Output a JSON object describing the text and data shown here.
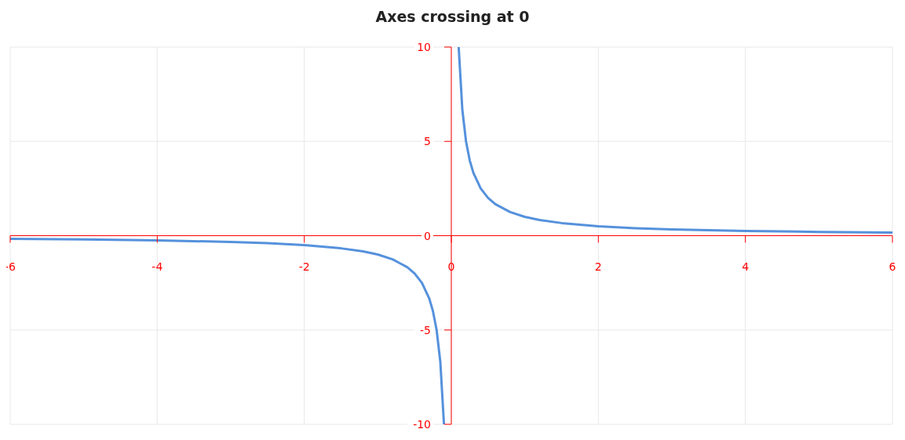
{
  "chart_data": {
    "type": "line",
    "title": "Axes crossing at 0",
    "x": [
      -6,
      -5,
      -4,
      -3,
      -2.5,
      -2,
      -1.5,
      -1.2,
      -1,
      -0.8,
      -0.6,
      -0.5,
      -0.4,
      -0.3,
      -0.25,
      -0.2,
      -0.15,
      -0.1,
      0,
      0.1,
      0.15,
      0.2,
      0.25,
      0.3,
      0.4,
      0.5,
      0.6,
      0.8,
      1,
      1.2,
      1.5,
      2,
      2.5,
      3,
      4,
      5,
      6
    ],
    "series": [
      {
        "color": "#5591dc",
        "values": [
          -0.17,
          -0.2,
          -0.25,
          -0.33,
          -0.4,
          -0.5,
          -0.67,
          -0.83,
          -1,
          -1.25,
          -1.67,
          -2,
          -2.5,
          -3.33,
          -4,
          -5,
          -6.67,
          -10,
          null,
          10,
          6.67,
          5,
          4,
          3.33,
          2.5,
          2,
          1.67,
          1.25,
          1,
          0.83,
          0.67,
          0.5,
          0.4,
          0.33,
          0.25,
          0.2,
          0.17
        ]
      }
    ],
    "xlim": [
      -6,
      6
    ],
    "xticks": [
      -6,
      -4,
      -2,
      0,
      2,
      4,
      6
    ],
    "ylim": [
      -10,
      10
    ],
    "yticks": [
      -10,
      -5,
      0,
      5,
      10
    ],
    "grid": true,
    "marker": "none",
    "line_style": "solid"
  }
}
